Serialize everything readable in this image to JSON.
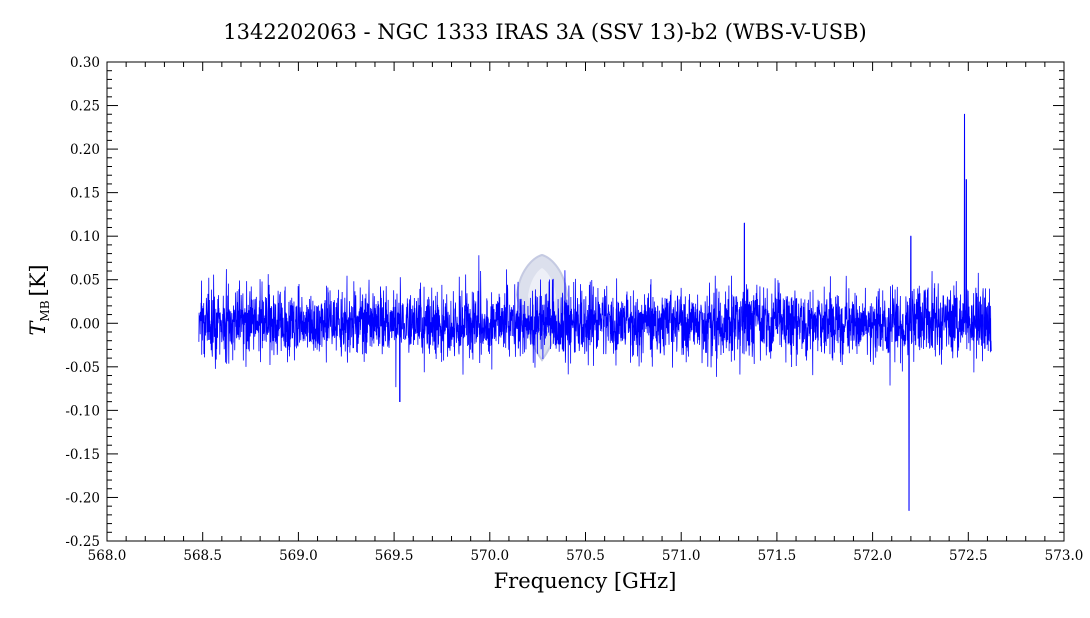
{
  "chart_data": {
    "type": "line",
    "title": "1342202063 - NGC 1333 IRAS 3A (SSV 13)-b2 (WBS-V-USB)",
    "xlabel": "Frequency [GHz]",
    "ylabel": {
      "symbol": "T",
      "subscript": "MB",
      "unit": "[K]"
    },
    "xlim": [
      568.0,
      573.0
    ],
    "ylim": [
      -0.25,
      0.3
    ],
    "x_ticks": [
      "568.0",
      "568.5",
      "569.0",
      "569.5",
      "570.0",
      "570.5",
      "571.0",
      "571.5",
      "572.0",
      "572.5",
      "573.0"
    ],
    "y_ticks": [
      "-0.25",
      "-0.20",
      "-0.15",
      "-0.10",
      "-0.05",
      "0.00",
      "0.05",
      "0.10",
      "0.15",
      "0.20",
      "0.25",
      "0.30"
    ],
    "grid": false,
    "legend": "none",
    "series": [
      {
        "color": "#0000ff",
        "x_range": [
          568.48,
          572.62
        ],
        "noise_rms": 0.02,
        "features": [
          {
            "x": 569.53,
            "y": -0.09
          },
          {
            "x": 571.33,
            "y": 0.115
          },
          {
            "x": 572.19,
            "y": -0.215
          },
          {
            "x": 572.2,
            "y": 0.1
          },
          {
            "x": 572.48,
            "y": 0.24
          },
          {
            "x": 572.49,
            "y": 0.165
          }
        ]
      }
    ],
    "watermark": {
      "text": "WISH",
      "color": "#9aa6cc"
    }
  }
}
